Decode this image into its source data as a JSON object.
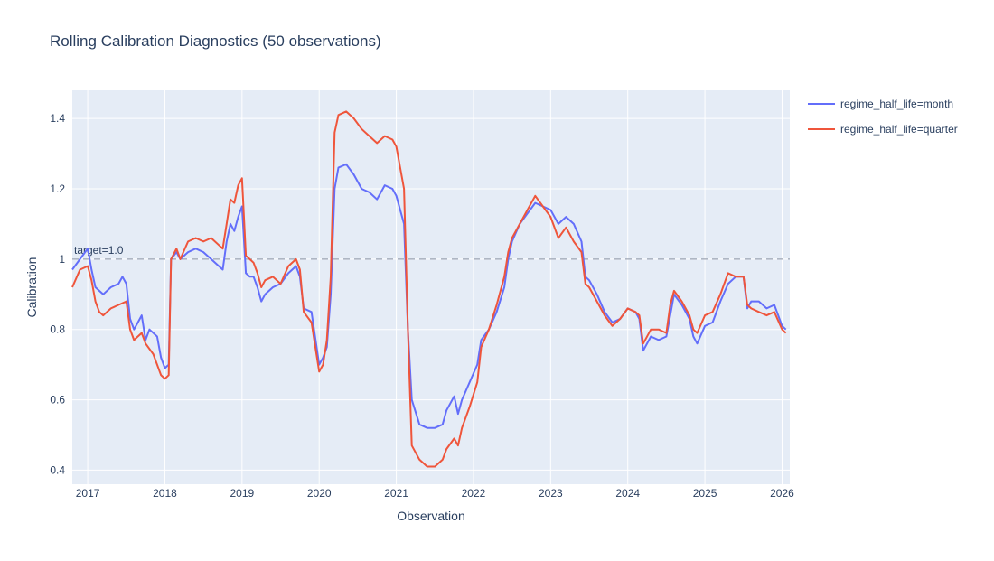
{
  "chart_data": {
    "type": "line",
    "title": "Rolling Calibration Diagnostics (50 observations)",
    "xlabel": "Observation",
    "ylabel": "Calibration",
    "x_ticks": [
      "2017",
      "2018",
      "2019",
      "2020",
      "2021",
      "2022",
      "2023",
      "2024",
      "2025",
      "2026"
    ],
    "y_ticks": [
      "0.4",
      "0.6",
      "0.8",
      "1",
      "1.2",
      "1.4"
    ],
    "y_tick_values": [
      0.4,
      0.6,
      0.8,
      1.0,
      1.2,
      1.4
    ],
    "xlim": [
      2016.8,
      2026.1
    ],
    "ylim": [
      0.36,
      1.48
    ],
    "grid": true,
    "legend_position": "top-right",
    "reference_line": {
      "y": 1.0,
      "label": "target=1.0",
      "style": "dashed",
      "color": "#8a93a3"
    },
    "series": [
      {
        "name": "regime_half_life=month",
        "color": "#636efa",
        "points": [
          [
            2016.8,
            0.97
          ],
          [
            2016.9,
            1.0
          ],
          [
            2017.0,
            1.03
          ],
          [
            2017.05,
            0.97
          ],
          [
            2017.1,
            0.92
          ],
          [
            2017.2,
            0.9
          ],
          [
            2017.3,
            0.92
          ],
          [
            2017.4,
            0.93
          ],
          [
            2017.45,
            0.95
          ],
          [
            2017.5,
            0.93
          ],
          [
            2017.55,
            0.83
          ],
          [
            2017.6,
            0.8
          ],
          [
            2017.65,
            0.82
          ],
          [
            2017.7,
            0.84
          ],
          [
            2017.75,
            0.77
          ],
          [
            2017.8,
            0.8
          ],
          [
            2017.9,
            0.78
          ],
          [
            2017.95,
            0.72
          ],
          [
            2018.0,
            0.69
          ],
          [
            2018.05,
            0.7
          ],
          [
            2018.08,
            1.0
          ],
          [
            2018.15,
            1.02
          ],
          [
            2018.2,
            1.0
          ],
          [
            2018.3,
            1.02
          ],
          [
            2018.4,
            1.03
          ],
          [
            2018.5,
            1.02
          ],
          [
            2018.6,
            1.0
          ],
          [
            2018.7,
            0.98
          ],
          [
            2018.75,
            0.97
          ],
          [
            2018.8,
            1.05
          ],
          [
            2018.85,
            1.1
          ],
          [
            2018.9,
            1.08
          ],
          [
            2018.95,
            1.12
          ],
          [
            2019.0,
            1.15
          ],
          [
            2019.05,
            0.96
          ],
          [
            2019.1,
            0.95
          ],
          [
            2019.15,
            0.95
          ],
          [
            2019.2,
            0.92
          ],
          [
            2019.25,
            0.88
          ],
          [
            2019.3,
            0.9
          ],
          [
            2019.4,
            0.92
          ],
          [
            2019.5,
            0.93
          ],
          [
            2019.6,
            0.96
          ],
          [
            2019.7,
            0.98
          ],
          [
            2019.75,
            0.95
          ],
          [
            2019.8,
            0.86
          ],
          [
            2019.9,
            0.85
          ],
          [
            2020.0,
            0.7
          ],
          [
            2020.05,
            0.72
          ],
          [
            2020.1,
            0.75
          ],
          [
            2020.15,
            0.9
          ],
          [
            2020.2,
            1.2
          ],
          [
            2020.25,
            1.26
          ],
          [
            2020.35,
            1.27
          ],
          [
            2020.45,
            1.24
          ],
          [
            2020.55,
            1.2
          ],
          [
            2020.65,
            1.19
          ],
          [
            2020.75,
            1.17
          ],
          [
            2020.85,
            1.21
          ],
          [
            2020.95,
            1.2
          ],
          [
            2021.0,
            1.18
          ],
          [
            2021.1,
            1.1
          ],
          [
            2021.15,
            0.8
          ],
          [
            2021.2,
            0.6
          ],
          [
            2021.3,
            0.53
          ],
          [
            2021.4,
            0.52
          ],
          [
            2021.5,
            0.52
          ],
          [
            2021.6,
            0.53
          ],
          [
            2021.65,
            0.57
          ],
          [
            2021.75,
            0.61
          ],
          [
            2021.8,
            0.56
          ],
          [
            2021.85,
            0.6
          ],
          [
            2021.95,
            0.65
          ],
          [
            2022.05,
            0.7
          ],
          [
            2022.1,
            0.77
          ],
          [
            2022.2,
            0.8
          ],
          [
            2022.3,
            0.85
          ],
          [
            2022.4,
            0.92
          ],
          [
            2022.45,
            1.0
          ],
          [
            2022.5,
            1.05
          ],
          [
            2022.6,
            1.1
          ],
          [
            2022.7,
            1.13
          ],
          [
            2022.8,
            1.16
          ],
          [
            2022.9,
            1.15
          ],
          [
            2023.0,
            1.14
          ],
          [
            2023.1,
            1.1
          ],
          [
            2023.2,
            1.12
          ],
          [
            2023.3,
            1.1
          ],
          [
            2023.4,
            1.05
          ],
          [
            2023.45,
            0.95
          ],
          [
            2023.5,
            0.94
          ],
          [
            2023.6,
            0.9
          ],
          [
            2023.7,
            0.85
          ],
          [
            2023.8,
            0.82
          ],
          [
            2023.9,
            0.83
          ],
          [
            2024.0,
            0.86
          ],
          [
            2024.1,
            0.85
          ],
          [
            2024.15,
            0.83
          ],
          [
            2024.2,
            0.74
          ],
          [
            2024.3,
            0.78
          ],
          [
            2024.4,
            0.77
          ],
          [
            2024.5,
            0.78
          ],
          [
            2024.55,
            0.84
          ],
          [
            2024.6,
            0.9
          ],
          [
            2024.7,
            0.87
          ],
          [
            2024.8,
            0.83
          ],
          [
            2024.85,
            0.78
          ],
          [
            2024.9,
            0.76
          ],
          [
            2025.0,
            0.81
          ],
          [
            2025.1,
            0.82
          ],
          [
            2025.2,
            0.88
          ],
          [
            2025.3,
            0.93
          ],
          [
            2025.4,
            0.95
          ],
          [
            2025.5,
            0.95
          ],
          [
            2025.55,
            0.86
          ],
          [
            2025.6,
            0.88
          ],
          [
            2025.7,
            0.88
          ],
          [
            2025.8,
            0.86
          ],
          [
            2025.9,
            0.87
          ],
          [
            2026.0,
            0.81
          ],
          [
            2026.05,
            0.8
          ]
        ]
      },
      {
        "name": "regime_half_life=quarter",
        "color": "#ef553b",
        "points": [
          [
            2016.8,
            0.92
          ],
          [
            2016.9,
            0.97
          ],
          [
            2017.0,
            0.98
          ],
          [
            2017.05,
            0.94
          ],
          [
            2017.1,
            0.88
          ],
          [
            2017.15,
            0.85
          ],
          [
            2017.2,
            0.84
          ],
          [
            2017.3,
            0.86
          ],
          [
            2017.4,
            0.87
          ],
          [
            2017.5,
            0.88
          ],
          [
            2017.55,
            0.8
          ],
          [
            2017.6,
            0.77
          ],
          [
            2017.7,
            0.79
          ],
          [
            2017.75,
            0.76
          ],
          [
            2017.85,
            0.73
          ],
          [
            2017.95,
            0.67
          ],
          [
            2018.0,
            0.66
          ],
          [
            2018.05,
            0.67
          ],
          [
            2018.08,
            1.0
          ],
          [
            2018.15,
            1.03
          ],
          [
            2018.2,
            1.0
          ],
          [
            2018.3,
            1.05
          ],
          [
            2018.4,
            1.06
          ],
          [
            2018.5,
            1.05
          ],
          [
            2018.6,
            1.06
          ],
          [
            2018.7,
            1.04
          ],
          [
            2018.75,
            1.03
          ],
          [
            2018.8,
            1.1
          ],
          [
            2018.85,
            1.17
          ],
          [
            2018.9,
            1.16
          ],
          [
            2018.95,
            1.21
          ],
          [
            2019.0,
            1.23
          ],
          [
            2019.05,
            1.01
          ],
          [
            2019.1,
            1.0
          ],
          [
            2019.15,
            0.99
          ],
          [
            2019.2,
            0.96
          ],
          [
            2019.25,
            0.92
          ],
          [
            2019.3,
            0.94
          ],
          [
            2019.4,
            0.95
          ],
          [
            2019.5,
            0.93
          ],
          [
            2019.6,
            0.98
          ],
          [
            2019.7,
            1.0
          ],
          [
            2019.75,
            0.97
          ],
          [
            2019.8,
            0.85
          ],
          [
            2019.9,
            0.82
          ],
          [
            2020.0,
            0.68
          ],
          [
            2020.05,
            0.7
          ],
          [
            2020.1,
            0.77
          ],
          [
            2020.15,
            0.95
          ],
          [
            2020.2,
            1.36
          ],
          [
            2020.25,
            1.41
          ],
          [
            2020.35,
            1.42
          ],
          [
            2020.45,
            1.4
          ],
          [
            2020.55,
            1.37
          ],
          [
            2020.65,
            1.35
          ],
          [
            2020.75,
            1.33
          ],
          [
            2020.85,
            1.35
          ],
          [
            2020.95,
            1.34
          ],
          [
            2021.0,
            1.32
          ],
          [
            2021.1,
            1.2
          ],
          [
            2021.15,
            0.8
          ],
          [
            2021.2,
            0.47
          ],
          [
            2021.3,
            0.43
          ],
          [
            2021.4,
            0.41
          ],
          [
            2021.5,
            0.41
          ],
          [
            2021.6,
            0.43
          ],
          [
            2021.65,
            0.46
          ],
          [
            2021.75,
            0.49
          ],
          [
            2021.8,
            0.47
          ],
          [
            2021.85,
            0.52
          ],
          [
            2021.95,
            0.58
          ],
          [
            2022.05,
            0.65
          ],
          [
            2022.1,
            0.75
          ],
          [
            2022.2,
            0.8
          ],
          [
            2022.3,
            0.87
          ],
          [
            2022.4,
            0.95
          ],
          [
            2022.45,
            1.02
          ],
          [
            2022.5,
            1.06
          ],
          [
            2022.6,
            1.1
          ],
          [
            2022.7,
            1.14
          ],
          [
            2022.8,
            1.18
          ],
          [
            2022.9,
            1.15
          ],
          [
            2023.0,
            1.12
          ],
          [
            2023.1,
            1.06
          ],
          [
            2023.2,
            1.09
          ],
          [
            2023.3,
            1.05
          ],
          [
            2023.4,
            1.02
          ],
          [
            2023.45,
            0.93
          ],
          [
            2023.5,
            0.92
          ],
          [
            2023.6,
            0.88
          ],
          [
            2023.7,
            0.84
          ],
          [
            2023.8,
            0.81
          ],
          [
            2023.9,
            0.83
          ],
          [
            2024.0,
            0.86
          ],
          [
            2024.1,
            0.85
          ],
          [
            2024.15,
            0.84
          ],
          [
            2024.2,
            0.76
          ],
          [
            2024.3,
            0.8
          ],
          [
            2024.4,
            0.8
          ],
          [
            2024.5,
            0.79
          ],
          [
            2024.55,
            0.87
          ],
          [
            2024.6,
            0.91
          ],
          [
            2024.7,
            0.88
          ],
          [
            2024.8,
            0.84
          ],
          [
            2024.85,
            0.8
          ],
          [
            2024.9,
            0.79
          ],
          [
            2025.0,
            0.84
          ],
          [
            2025.1,
            0.85
          ],
          [
            2025.2,
            0.9
          ],
          [
            2025.3,
            0.96
          ],
          [
            2025.4,
            0.95
          ],
          [
            2025.5,
            0.95
          ],
          [
            2025.55,
            0.87
          ],
          [
            2025.6,
            0.86
          ],
          [
            2025.7,
            0.85
          ],
          [
            2025.8,
            0.84
          ],
          [
            2025.9,
            0.85
          ],
          [
            2026.0,
            0.8
          ],
          [
            2026.05,
            0.79
          ]
        ]
      }
    ]
  }
}
